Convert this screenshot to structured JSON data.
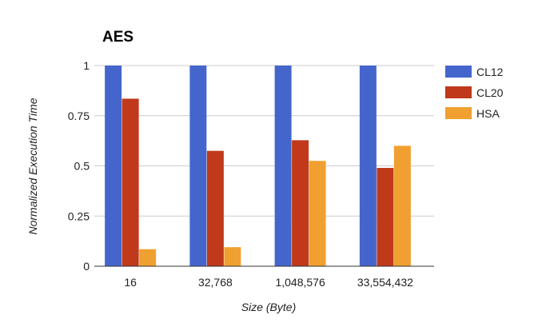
{
  "chart_data": {
    "type": "bar",
    "title": "AES",
    "xlabel": "Size (Byte)",
    "ylabel": "Normalized Execution Time",
    "categories": [
      "16",
      "32,768",
      "1,048,576",
      "33,554,432"
    ],
    "series": [
      {
        "name": "CL12",
        "color": "#4466cc",
        "values": [
          1,
          1,
          1,
          1
        ]
      },
      {
        "name": "CL20",
        "color": "#c0391b",
        "values": [
          0.835,
          0.575,
          0.628,
          0.49
        ]
      },
      {
        "name": "HSA",
        "color": "#f0a030",
        "values": [
          0.085,
          0.095,
          0.525,
          0.6
        ]
      }
    ],
    "ylim": [
      0,
      1
    ],
    "yticks": [
      0,
      0.25,
      0.5,
      0.75,
      1
    ],
    "ytick_labels": [
      "0",
      "0.25",
      "0.5",
      "0.75",
      "1"
    ],
    "grid": true,
    "legend": "right"
  }
}
